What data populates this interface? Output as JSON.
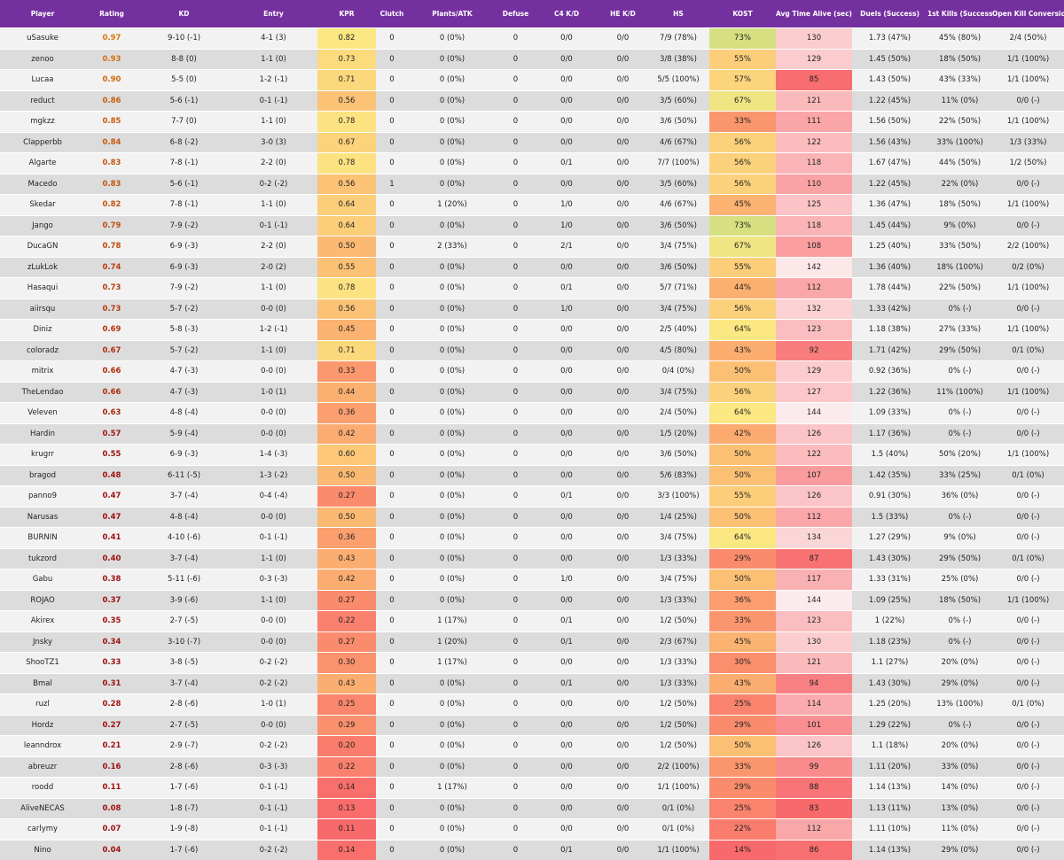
{
  "columns": [
    "Player",
    "Rating",
    "KD",
    "Entry",
    "KPR",
    "Clutch",
    "Plants/ATK",
    "Defuse",
    "C4 K/D",
    "HE K/D",
    "HS",
    "KOST",
    "Avg Time Alive (sec)",
    "Duels (Success)",
    "1st Kills (Success)",
    "Open Kill Conversion"
  ],
  "colors": {
    "header": "#7530a0",
    "row_light": "#f2f2f2",
    "row_dark": "#dcdcdc",
    "rating_high": "#d97a0c",
    "rating_low": "#9e1010"
  },
  "rows": [
    [
      "uSasuke",
      "0.97",
      "9-10 (-1)",
      "4-1 (3)",
      "0.82",
      "0",
      "0 (0%)",
      "0",
      "0/0",
      "0/0",
      "7/9 (78%)",
      "73%",
      "130",
      "1.73 (47%)",
      "45% (80%)",
      "2/4 (50%)"
    ],
    [
      "zenoo",
      "0.93",
      "8-8 (0)",
      "1-1 (0)",
      "0.73",
      "0",
      "0 (0%)",
      "0",
      "0/0",
      "0/0",
      "3/8 (38%)",
      "55%",
      "129",
      "1.45 (50%)",
      "18% (50%)",
      "1/1 (100%)"
    ],
    [
      "Lucaa",
      "0.90",
      "5-5 (0)",
      "1-2 (-1)",
      "0.71",
      "0",
      "0 (0%)",
      "0",
      "0/0",
      "0/0",
      "5/5 (100%)",
      "57%",
      "85",
      "1.43 (50%)",
      "43% (33%)",
      "1/1 (100%)"
    ],
    [
      "reduct",
      "0.86",
      "5-6 (-1)",
      "0-1 (-1)",
      "0.56",
      "0",
      "0 (0%)",
      "0",
      "0/0",
      "0/0",
      "3/5 (60%)",
      "67%",
      "121",
      "1.22 (45%)",
      "11% (0%)",
      "0/0 (-)"
    ],
    [
      "mgkzz",
      "0.85",
      "7-7 (0)",
      "1-1 (0)",
      "0.78",
      "0",
      "0 (0%)",
      "0",
      "0/0",
      "0/0",
      "3/6 (50%)",
      "33%",
      "111",
      "1.56 (50%)",
      "22% (50%)",
      "1/1 (100%)"
    ],
    [
      "Clapperbb",
      "0.84",
      "6-8 (-2)",
      "3-0 (3)",
      "0.67",
      "0",
      "0 (0%)",
      "0",
      "0/0",
      "0/0",
      "4/6 (67%)",
      "56%",
      "122",
      "1.56 (43%)",
      "33% (100%)",
      "1/3 (33%)"
    ],
    [
      "Algarte",
      "0.83",
      "7-8 (-1)",
      "2-2 (0)",
      "0.78",
      "0",
      "0 (0%)",
      "0",
      "0/1",
      "0/0",
      "7/7 (100%)",
      "56%",
      "118",
      "1.67 (47%)",
      "44% (50%)",
      "1/2 (50%)"
    ],
    [
      "Macedo",
      "0.83",
      "5-6 (-1)",
      "0-2 (-2)",
      "0.56",
      "1",
      "0 (0%)",
      "0",
      "0/0",
      "0/0",
      "3/5 (60%)",
      "56%",
      "110",
      "1.22 (45%)",
      "22% (0%)",
      "0/0 (-)"
    ],
    [
      "Skedar",
      "0.82",
      "7-8 (-1)",
      "1-1 (0)",
      "0.64",
      "0",
      "1 (20%)",
      "0",
      "1/0",
      "0/0",
      "4/6 (67%)",
      "45%",
      "125",
      "1.36 (47%)",
      "18% (50%)",
      "1/1 (100%)"
    ],
    [
      "Jango",
      "0.79",
      "7-9 (-2)",
      "0-1 (-1)",
      "0.64",
      "0",
      "0 (0%)",
      "0",
      "1/0",
      "0/0",
      "3/6 (50%)",
      "73%",
      "118",
      "1.45 (44%)",
      "9% (0%)",
      "0/0 (-)"
    ],
    [
      "DucaGN",
      "0.78",
      "6-9 (-3)",
      "2-2 (0)",
      "0.50",
      "0",
      "2 (33%)",
      "0",
      "2/1",
      "0/0",
      "3/4 (75%)",
      "67%",
      "108",
      "1.25 (40%)",
      "33% (50%)",
      "2/2 (100%)"
    ],
    [
      "zLukLok",
      "0.74",
      "6-9 (-3)",
      "2-0 (2)",
      "0.55",
      "0",
      "0 (0%)",
      "0",
      "0/0",
      "0/0",
      "3/6 (50%)",
      "55%",
      "142",
      "1.36 (40%)",
      "18% (100%)",
      "0/2 (0%)"
    ],
    [
      "Hasaqui",
      "0.73",
      "7-9 (-2)",
      "1-1 (0)",
      "0.78",
      "0",
      "0 (0%)",
      "0",
      "0/1",
      "0/0",
      "5/7 (71%)",
      "44%",
      "112",
      "1.78 (44%)",
      "22% (50%)",
      "1/1 (100%)"
    ],
    [
      "aiirsqu",
      "0.73",
      "5-7 (-2)",
      "0-0 (0)",
      "0.56",
      "0",
      "0 (0%)",
      "0",
      "1/0",
      "0/0",
      "3/4 (75%)",
      "56%",
      "132",
      "1.33 (42%)",
      "0% (-)",
      "0/0 (-)"
    ],
    [
      "Diniz",
      "0.69",
      "5-8 (-3)",
      "1-2 (-1)",
      "0.45",
      "0",
      "0 (0%)",
      "0",
      "0/0",
      "0/0",
      "2/5 (40%)",
      "64%",
      "123",
      "1.18 (38%)",
      "27% (33%)",
      "1/1 (100%)"
    ],
    [
      "coloradz",
      "0.67",
      "5-7 (-2)",
      "1-1 (0)",
      "0.71",
      "0",
      "0 (0%)",
      "0",
      "0/0",
      "0/0",
      "4/5 (80%)",
      "43%",
      "92",
      "1.71 (42%)",
      "29% (50%)",
      "0/1 (0%)"
    ],
    [
      "mitrix",
      "0.66",
      "4-7 (-3)",
      "0-0 (0)",
      "0.33",
      "0",
      "0 (0%)",
      "0",
      "0/0",
      "0/0",
      "0/4 (0%)",
      "50%",
      "129",
      "0.92 (36%)",
      "0% (-)",
      "0/0 (-)"
    ],
    [
      "TheLendao",
      "0.66",
      "4-7 (-3)",
      "1-0 (1)",
      "0.44",
      "0",
      "0 (0%)",
      "0",
      "0/0",
      "0/0",
      "3/4 (75%)",
      "56%",
      "127",
      "1.22 (36%)",
      "11% (100%)",
      "1/1 (100%)"
    ],
    [
      "Veleven",
      "0.63",
      "4-8 (-4)",
      "0-0 (0)",
      "0.36",
      "0",
      "0 (0%)",
      "0",
      "0/0",
      "0/0",
      "2/4 (50%)",
      "64%",
      "144",
      "1.09 (33%)",
      "0% (-)",
      "0/0 (-)"
    ],
    [
      "Hardin",
      "0.57",
      "5-9 (-4)",
      "0-0 (0)",
      "0.42",
      "0",
      "0 (0%)",
      "0",
      "0/0",
      "0/0",
      "1/5 (20%)",
      "42%",
      "126",
      "1.17 (36%)",
      "0% (-)",
      "0/0 (-)"
    ],
    [
      "krugrr",
      "0.55",
      "6-9 (-3)",
      "1-4 (-3)",
      "0.60",
      "0",
      "0 (0%)",
      "0",
      "0/0",
      "0/0",
      "3/6 (50%)",
      "50%",
      "122",
      "1.5 (40%)",
      "50% (20%)",
      "1/1 (100%)"
    ],
    [
      "bragod",
      "0.48",
      "6-11 (-5)",
      "1-3 (-2)",
      "0.50",
      "0",
      "0 (0%)",
      "0",
      "0/0",
      "0/0",
      "5/6 (83%)",
      "50%",
      "107",
      "1.42 (35%)",
      "33% (25%)",
      "0/1 (0%)"
    ],
    [
      "panno9",
      "0.47",
      "3-7 (-4)",
      "0-4 (-4)",
      "0.27",
      "0",
      "0 (0%)",
      "0",
      "0/1",
      "0/0",
      "3/3 (100%)",
      "55%",
      "126",
      "0.91 (30%)",
      "36% (0%)",
      "0/0 (-)"
    ],
    [
      "Narusas",
      "0.47",
      "4-8 (-4)",
      "0-0 (0)",
      "0.50",
      "0",
      "0 (0%)",
      "0",
      "0/0",
      "0/0",
      "1/4 (25%)",
      "50%",
      "112",
      "1.5 (33%)",
      "0% (-)",
      "0/0 (-)"
    ],
    [
      "BURNIN",
      "0.41",
      "4-10 (-6)",
      "0-1 (-1)",
      "0.36",
      "0",
      "0 (0%)",
      "0",
      "0/0",
      "0/0",
      "3/4 (75%)",
      "64%",
      "134",
      "1.27 (29%)",
      "9% (0%)",
      "0/0 (-)"
    ],
    [
      "tukzord",
      "0.40",
      "3-7 (-4)",
      "1-1 (0)",
      "0.43",
      "0",
      "0 (0%)",
      "0",
      "0/0",
      "0/0",
      "1/3 (33%)",
      "29%",
      "87",
      "1.43 (30%)",
      "29% (50%)",
      "0/1 (0%)"
    ],
    [
      "Gabu",
      "0.38",
      "5-11 (-6)",
      "0-3 (-3)",
      "0.42",
      "0",
      "0 (0%)",
      "0",
      "1/0",
      "0/0",
      "3/4 (75%)",
      "50%",
      "117",
      "1.33 (31%)",
      "25% (0%)",
      "0/0 (-)"
    ],
    [
      "ROJAO",
      "0.37",
      "3-9 (-6)",
      "1-1 (0)",
      "0.27",
      "0",
      "0 (0%)",
      "0",
      "0/0",
      "0/0",
      "1/3 (33%)",
      "36%",
      "144",
      "1.09 (25%)",
      "18% (50%)",
      "1/1 (100%)"
    ],
    [
      "Akirex",
      "0.35",
      "2-7 (-5)",
      "0-0 (0)",
      "0.22",
      "0",
      "1 (17%)",
      "0",
      "0/1",
      "0/0",
      "1/2 (50%)",
      "33%",
      "123",
      "1 (22%)",
      "0% (-)",
      "0/0 (-)"
    ],
    [
      "Jnsky",
      "0.34",
      "3-10 (-7)",
      "0-0 (0)",
      "0.27",
      "0",
      "1 (20%)",
      "0",
      "0/1",
      "0/0",
      "2/3 (67%)",
      "45%",
      "130",
      "1.18 (23%)",
      "0% (-)",
      "0/0 (-)"
    ],
    [
      "ShooTZ1",
      "0.33",
      "3-8 (-5)",
      "0-2 (-2)",
      "0.30",
      "0",
      "1 (17%)",
      "0",
      "0/0",
      "0/0",
      "1/3 (33%)",
      "30%",
      "121",
      "1.1 (27%)",
      "20% (0%)",
      "0/0 (-)"
    ],
    [
      "Bmal",
      "0.31",
      "3-7 (-4)",
      "0-2 (-2)",
      "0.43",
      "0",
      "0 (0%)",
      "0",
      "0/1",
      "0/0",
      "1/3 (33%)",
      "43%",
      "94",
      "1.43 (30%)",
      "29% (0%)",
      "0/0 (-)"
    ],
    [
      "ruzl",
      "0.28",
      "2-8 (-6)",
      "1-0 (1)",
      "0.25",
      "0",
      "0 (0%)",
      "0",
      "0/0",
      "0/0",
      "1/2 (50%)",
      "25%",
      "114",
      "1.25 (20%)",
      "13% (100%)",
      "0/1 (0%)"
    ],
    [
      "Hordz",
      "0.27",
      "2-7 (-5)",
      "0-0 (0)",
      "0.29",
      "0",
      "0 (0%)",
      "0",
      "0/0",
      "0/0",
      "1/2 (50%)",
      "29%",
      "101",
      "1.29 (22%)",
      "0% (-)",
      "0/0 (-)"
    ],
    [
      "leanndrox",
      "0.21",
      "2-9 (-7)",
      "0-2 (-2)",
      "0.20",
      "0",
      "0 (0%)",
      "0",
      "0/0",
      "0/0",
      "1/2 (50%)",
      "50%",
      "126",
      "1.1 (18%)",
      "20% (0%)",
      "0/0 (-)"
    ],
    [
      "abreuzr",
      "0.16",
      "2-8 (-6)",
      "0-3 (-3)",
      "0.22",
      "0",
      "0 (0%)",
      "0",
      "0/0",
      "0/0",
      "2/2 (100%)",
      "33%",
      "99",
      "1.11 (20%)",
      "33% (0%)",
      "0/0 (-)"
    ],
    [
      "roodd",
      "0.11",
      "1-7 (-6)",
      "0-1 (-1)",
      "0.14",
      "0",
      "1 (17%)",
      "0",
      "0/0",
      "0/0",
      "1/1 (100%)",
      "29%",
      "88",
      "1.14 (13%)",
      "14% (0%)",
      "0/0 (-)"
    ],
    [
      "AliveNECAS",
      "0.08",
      "1-8 (-7)",
      "0-1 (-1)",
      "0.13",
      "0",
      "0 (0%)",
      "0",
      "0/0",
      "0/0",
      "0/1 (0%)",
      "25%",
      "83",
      "1.13 (11%)",
      "13% (0%)",
      "0/0 (-)"
    ],
    [
      "carlymy",
      "0.07",
      "1-9 (-8)",
      "0-1 (-1)",
      "0.11",
      "0",
      "0 (0%)",
      "0",
      "0/0",
      "0/0",
      "0/1 (0%)",
      "22%",
      "112",
      "1.11 (10%)",
      "11% (0%)",
      "0/0 (-)"
    ],
    [
      "Nino",
      "0.04",
      "1-7 (-6)",
      "0-2 (-2)",
      "0.14",
      "0",
      "0 (0%)",
      "0",
      "0/1",
      "0/0",
      "1/1 (100%)",
      "14%",
      "86",
      "1.14 (13%)",
      "29% (0%)",
      "0/0 (-)"
    ]
  ]
}
